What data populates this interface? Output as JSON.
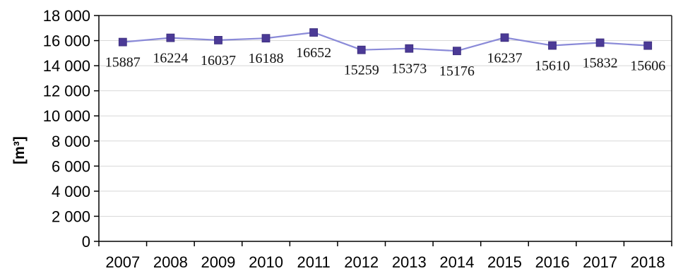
{
  "chart_data": {
    "type": "line",
    "title": "",
    "xlabel": "",
    "ylabel": "[m³]",
    "categories": [
      "2007",
      "2008",
      "2009",
      "2010",
      "2011",
      "2012",
      "2013",
      "2014",
      "2015",
      "2016",
      "2017",
      "2018"
    ],
    "series": [
      {
        "values": [
          15887,
          16224,
          16037,
          16188,
          16652,
          15259,
          15373,
          15176,
          16237,
          15610,
          15832,
          15606
        ],
        "data_labels": [
          "15887",
          "16224",
          "16037",
          "16188",
          "16652",
          "15259",
          "15373",
          "15176",
          "16237",
          "15610",
          "15832",
          "15606"
        ]
      }
    ],
    "ylim": [
      0,
      18000
    ],
    "y_ticks": [
      0,
      2000,
      4000,
      6000,
      8000,
      10000,
      12000,
      14000,
      16000,
      18000
    ],
    "y_tick_labels": [
      "0",
      "2 000",
      "4 000",
      "6 000",
      "8 000",
      "10 000",
      "12 000",
      "14 000",
      "16 000",
      "18 000"
    ],
    "grid": true,
    "legend": "none",
    "line_color": "#8a8ad8",
    "marker_color": "#4b3a96",
    "grid_color": "#d8d8d8"
  }
}
